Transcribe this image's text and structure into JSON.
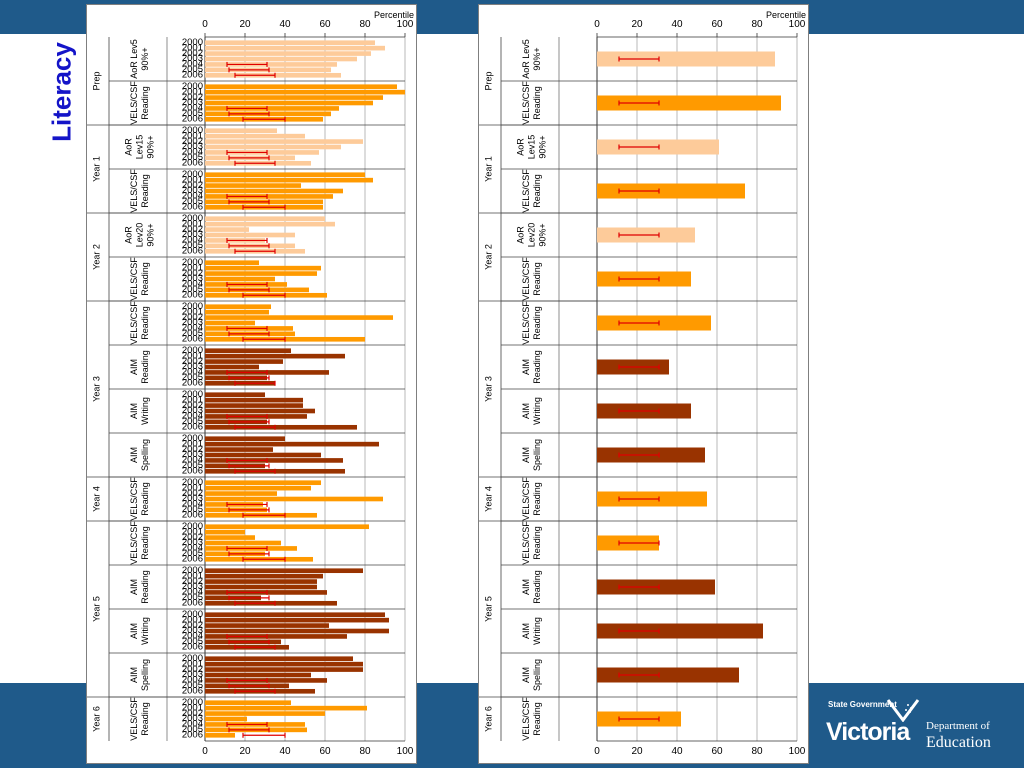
{
  "slide": {
    "title": "Literacy",
    "colors": {
      "navy": "#1f5a8a",
      "title": "#1414c8",
      "light": "#fdcb9a",
      "orange": "#ff9a00",
      "brown": "#993300",
      "error": "#e00000"
    }
  },
  "logo": {
    "line1": "State Government",
    "line2": "Victoria",
    "line3": "Department of",
    "line4": "Education"
  },
  "chart_data": [
    {
      "type": "bar",
      "orientation": "horizontal",
      "xlabel": "Percentile",
      "xlim": [
        0,
        100
      ],
      "xticks": [
        0,
        20,
        40,
        60,
        80,
        100
      ],
      "grid": true,
      "year_labels": [
        "2000",
        "2001",
        "2002",
        "2003",
        "2004",
        "2005",
        "2006"
      ],
      "groups": [
        {
          "year": "Prep",
          "measure": [
            "AoR Lev5",
            "90%+"
          ],
          "color": "light",
          "values": [
            85,
            90,
            83,
            76,
            66,
            63,
            68
          ],
          "errorbars": [
            [
              11,
              31
            ],
            [
              12,
              32
            ],
            [
              15,
              35
            ]
          ]
        },
        {
          "year": "",
          "measure": [
            "VELS/CSF",
            "Reading"
          ],
          "color": "orange",
          "values": [
            96,
            100,
            89,
            84,
            67,
            63,
            59
          ],
          "errorbars": [
            [
              11,
              31
            ],
            [
              12,
              32
            ],
            [
              19,
              40
            ]
          ]
        },
        {
          "year": "Year 1",
          "measure": [
            "AoR",
            "Lev15",
            "90%+"
          ],
          "color": "light",
          "values": [
            36,
            50,
            79,
            68,
            57,
            45,
            53
          ],
          "errorbars": [
            [
              11,
              31
            ],
            [
              12,
              32
            ],
            [
              15,
              35
            ]
          ]
        },
        {
          "year": "",
          "measure": [
            "VELS/CSF",
            "Reading"
          ],
          "color": "orange",
          "values": [
            80,
            84,
            48,
            69,
            64,
            59,
            59
          ],
          "errorbars": [
            [
              11,
              31
            ],
            [
              12,
              32
            ],
            [
              19,
              40
            ]
          ]
        },
        {
          "year": "Year 2",
          "measure": [
            "AoR",
            "Lev20",
            "90%+"
          ],
          "color": "light",
          "values": [
            60,
            65,
            22,
            45,
            30,
            45,
            50
          ],
          "errorbars": [
            [
              11,
              31
            ],
            [
              12,
              32
            ],
            [
              15,
              35
            ]
          ]
        },
        {
          "year": "",
          "measure": [
            "VELS/CSF",
            "Reading"
          ],
          "color": "orange",
          "values": [
            27,
            58,
            56,
            35,
            41,
            52,
            61
          ],
          "errorbars": [
            [
              11,
              31
            ],
            [
              12,
              32
            ],
            [
              19,
              40
            ]
          ]
        },
        {
          "year": "Year 3",
          "measure": [
            "VELS/CSF",
            "Reading"
          ],
          "color": "orange",
          "values": [
            33,
            32,
            94,
            25,
            44,
            45,
            80
          ],
          "errorbars": [
            [
              11,
              31
            ],
            [
              12,
              32
            ],
            [
              19,
              40
            ]
          ]
        },
        {
          "year": "",
          "measure": [
            "AIM",
            "Reading"
          ],
          "color": "brown",
          "values": [
            43,
            70,
            39,
            27,
            62,
            31,
            35
          ],
          "errorbars": [
            [
              11,
              31
            ],
            [
              12,
              32
            ],
            [
              15,
              35
            ]
          ]
        },
        {
          "year": "",
          "measure": [
            "AIM",
            "Writing"
          ],
          "color": "brown",
          "values": [
            30,
            49,
            49,
            55,
            51,
            31,
            76
          ],
          "errorbars": [
            [
              11,
              31
            ],
            [
              12,
              32
            ],
            [
              15,
              35
            ]
          ]
        },
        {
          "year": "",
          "measure": [
            "AIM",
            "Spelling"
          ],
          "color": "brown",
          "values": [
            40,
            87,
            34,
            58,
            69,
            30,
            70
          ],
          "errorbars": [
            [
              11,
              31
            ],
            [
              12,
              32
            ],
            [
              15,
              35
            ]
          ]
        },
        {
          "year": "Year 4",
          "measure": [
            "VELS/CSF",
            "Reading"
          ],
          "color": "orange",
          "values": [
            58,
            53,
            36,
            89,
            29,
            31,
            56
          ],
          "errorbars": [
            [
              11,
              31
            ],
            [
              12,
              32
            ],
            [
              19,
              40
            ]
          ]
        },
        {
          "year": "Year 5",
          "measure": [
            "VELS/CSF",
            "Reading"
          ],
          "color": "orange",
          "values": [
            82,
            20,
            25,
            38,
            46,
            30,
            54
          ],
          "errorbars": [
            [
              11,
              31
            ],
            [
              12,
              32
            ],
            [
              19,
              40
            ]
          ]
        },
        {
          "year": "",
          "measure": [
            "AIM",
            "Reading"
          ],
          "color": "brown",
          "values": [
            79,
            59,
            56,
            56,
            61,
            28,
            66
          ],
          "errorbars": [
            [
              11,
              31
            ],
            [
              12,
              32
            ],
            [
              15,
              35
            ]
          ]
        },
        {
          "year": "",
          "measure": [
            "AIM",
            "Writing"
          ],
          "color": "brown",
          "values": [
            90,
            92,
            62,
            92,
            71,
            38,
            42
          ],
          "errorbars": [
            [
              11,
              31
            ],
            [
              12,
              32
            ],
            [
              15,
              35
            ]
          ]
        },
        {
          "year": "",
          "measure": [
            "AIM",
            "Spelling"
          ],
          "color": "brown",
          "values": [
            74,
            79,
            79,
            53,
            61,
            42,
            55
          ],
          "errorbars": [
            [
              11,
              31
            ],
            [
              12,
              32
            ],
            [
              15,
              35
            ]
          ]
        },
        {
          "year": "Year 6",
          "measure": [
            "VELS/CSF",
            "Reading"
          ],
          "color": "orange",
          "values": [
            43,
            81,
            60,
            21,
            50,
            51,
            15
          ],
          "errorbars": [
            [
              11,
              31
            ],
            [
              12,
              32
            ],
            [
              19,
              40
            ]
          ]
        }
      ]
    },
    {
      "type": "bar",
      "orientation": "horizontal",
      "xlabel": "Percentile",
      "xlim": [
        0,
        100
      ],
      "xticks": [
        0,
        20,
        40,
        60,
        80,
        100
      ],
      "grid": true,
      "groups": [
        {
          "year": "Prep",
          "measure": [
            "AoR Lev5",
            "90%+"
          ],
          "color": "light",
          "value": 89,
          "errorbar": [
            11,
            31
          ]
        },
        {
          "year": "",
          "measure": [
            "VELS/CSF",
            "Reading"
          ],
          "color": "orange",
          "value": 92,
          "errorbar": [
            11,
            31
          ]
        },
        {
          "year": "Year 1",
          "measure": [
            "AoR",
            "Lev15",
            "90%+"
          ],
          "color": "light",
          "value": 61,
          "errorbar": [
            11,
            31
          ]
        },
        {
          "year": "",
          "measure": [
            "VELS/CSF",
            "Reading"
          ],
          "color": "orange",
          "value": 74,
          "errorbar": [
            11,
            31
          ]
        },
        {
          "year": "Year 2",
          "measure": [
            "AoR",
            "Lev20",
            "90%+"
          ],
          "color": "light",
          "value": 49,
          "errorbar": [
            11,
            31
          ]
        },
        {
          "year": "",
          "measure": [
            "VELS/CSF",
            "Reading"
          ],
          "color": "orange",
          "value": 47,
          "errorbar": [
            11,
            31
          ]
        },
        {
          "year": "Year 3",
          "measure": [
            "VELS/CSF",
            "Reading"
          ],
          "color": "orange",
          "value": 57,
          "errorbar": [
            11,
            31
          ]
        },
        {
          "year": "",
          "measure": [
            "AIM",
            "Reading"
          ],
          "color": "brown",
          "value": 36,
          "errorbar": [
            11,
            31
          ]
        },
        {
          "year": "",
          "measure": [
            "AIM",
            "Writing"
          ],
          "color": "brown",
          "value": 47,
          "errorbar": [
            11,
            31
          ]
        },
        {
          "year": "",
          "measure": [
            "AIM",
            "Spelling"
          ],
          "color": "brown",
          "value": 54,
          "errorbar": [
            11,
            31
          ]
        },
        {
          "year": "Year 4",
          "measure": [
            "VELS/CSF",
            "Reading"
          ],
          "color": "orange",
          "value": 55,
          "errorbar": [
            11,
            31
          ]
        },
        {
          "year": "Year 5",
          "measure": [
            "VELS/CSF",
            "Reading"
          ],
          "color": "orange",
          "value": 31,
          "errorbar": [
            11,
            31
          ]
        },
        {
          "year": "",
          "measure": [
            "AIM",
            "Reading"
          ],
          "color": "brown",
          "value": 59,
          "errorbar": [
            11,
            31
          ]
        },
        {
          "year": "",
          "measure": [
            "AIM",
            "Writing"
          ],
          "color": "brown",
          "value": 83,
          "errorbar": [
            11,
            31
          ]
        },
        {
          "year": "",
          "measure": [
            "AIM",
            "Spelling"
          ],
          "color": "brown",
          "value": 71,
          "errorbar": [
            11,
            31
          ]
        },
        {
          "year": "Year 6",
          "measure": [
            "VELS/CSF",
            "Reading"
          ],
          "color": "orange",
          "value": 42,
          "errorbar": [
            11,
            31
          ]
        }
      ]
    }
  ]
}
